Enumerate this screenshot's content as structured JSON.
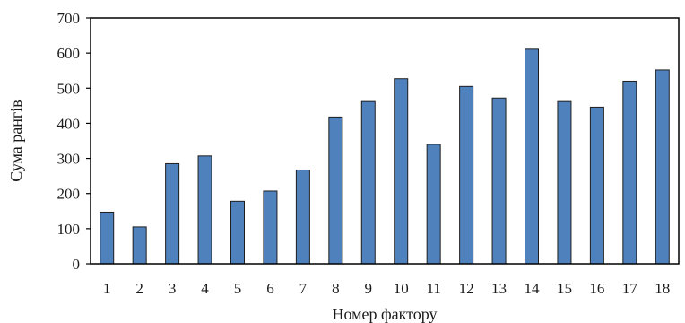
{
  "chart_data": {
    "type": "bar",
    "title": "",
    "xlabel": "Номер фактору",
    "ylabel": "Сума рангів",
    "ylim": [
      0,
      700
    ],
    "yticks": [
      0,
      100,
      200,
      300,
      400,
      500,
      600,
      700
    ],
    "grid": false,
    "legend": "none",
    "bar_color": "#4f81bd",
    "bar_edge_color": "#1f1f1f",
    "categories": [
      "1",
      "2",
      "3",
      "4",
      "5",
      "6",
      "7",
      "8",
      "9",
      "10",
      "11",
      "12",
      "13",
      "14",
      "15",
      "16",
      "17",
      "18"
    ],
    "values": [
      147,
      105,
      285,
      307,
      178,
      207,
      267,
      418,
      462,
      527,
      340,
      505,
      472,
      611,
      462,
      446,
      520,
      552
    ]
  }
}
